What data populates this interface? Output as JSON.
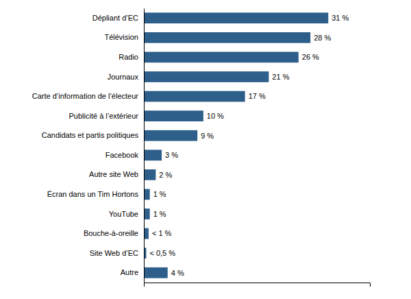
{
  "chart_data": {
    "type": "bar",
    "orientation": "horizontal",
    "categories": [
      "Autre",
      "Site Web d’EC",
      "Bouche-à-oreille",
      "YouTube",
      "Écran dans un Tim Hortons",
      "Autre site Web",
      "Facebook",
      "Candidats et partis politiques",
      "Publicité à l’extérieur",
      "Carte d’information de l’électeur",
      "Journaux",
      "Radio",
      "Télévision",
      "Dépliant d’EC"
    ],
    "values": [
      4,
      0.4,
      0.8,
      1,
      1,
      2,
      3,
      9,
      10,
      17,
      21,
      26,
      28,
      31
    ],
    "value_labels": [
      "4 %",
      "< 0,5 %",
      "< 1 %",
      "1 %",
      "1 %",
      "2 %",
      "3 %",
      "9 %",
      "10 %",
      "17 %",
      "21 %",
      "26 %",
      "28 %",
      "31 %"
    ],
    "color": "#2E5F8A",
    "xlim": [
      0,
      38
    ],
    "data_labels": true,
    "tick_labels": "y"
  }
}
